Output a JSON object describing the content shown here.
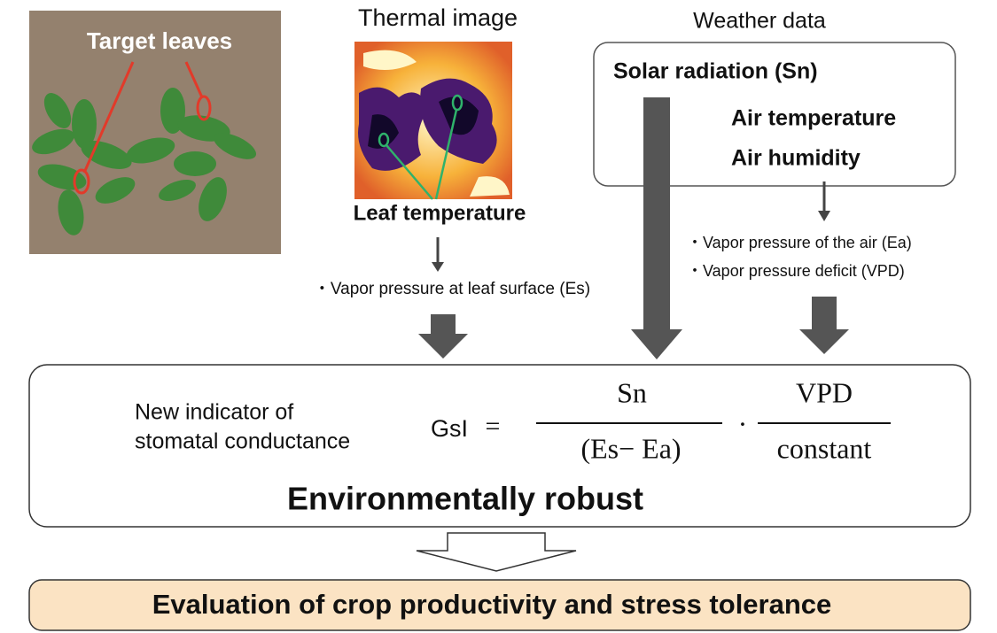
{
  "photo": {
    "label": "Target leaves"
  },
  "thermal": {
    "title": "Thermal image",
    "label": "Leaf temperature",
    "output": "・Vapor pressure at leaf surface (Es)"
  },
  "weather": {
    "title": "Weather data",
    "items": [
      "Solar radiation (Sn)",
      "Air temperature",
      "Air humidity"
    ],
    "outputs": [
      "・Vapor pressure of the air (Ea)",
      "・Vapor pressure deficit (VPD)"
    ]
  },
  "indicator": {
    "description": [
      "New indicator of",
      "stomatal conductance"
    ],
    "formula": {
      "lhs": "GsI",
      "equals": "=",
      "numerator1": "Sn",
      "denominator1": "(Es− Ea)",
      "dot": "·",
      "numerator2": "VPD",
      "denominator2": "constant"
    },
    "property": "Environmentally robust"
  },
  "result": "Evaluation of crop productivity and stress tolerance"
}
